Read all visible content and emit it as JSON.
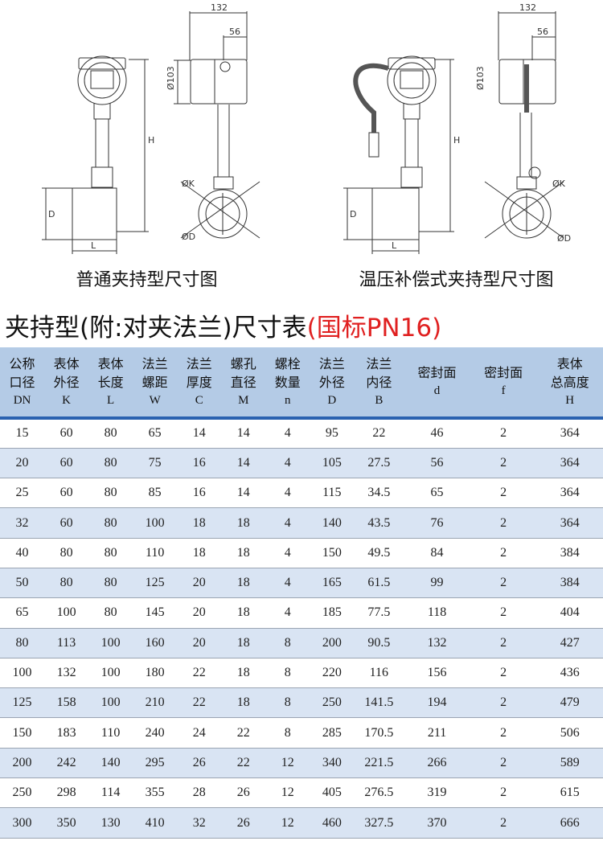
{
  "drawings": [
    {
      "caption": "普通夹持型尺寸图",
      "dims": {
        "width": "132",
        "offset": "56",
        "diameter": "Ø103",
        "height": "H",
        "pipe_d": "D",
        "length": "L",
        "k": "ØK",
        "flange_d": "ØD"
      }
    },
    {
      "caption": "温压补偿式夹持型尺寸图",
      "dims": {
        "width": "132",
        "offset": "56",
        "diameter": "Ø103",
        "height": "H",
        "pipe_d": "D",
        "length": "L",
        "k": "ØK",
        "flange_d": "ØD"
      }
    }
  ],
  "table_title": {
    "main": "夹持型(附:对夹法兰)尺寸表",
    "standard": "(国标PN16)"
  },
  "table": {
    "headers": [
      {
        "line1": "公称",
        "line2": "口径",
        "symbol": "DN"
      },
      {
        "line1": "表体",
        "line2": "外径",
        "symbol": "K"
      },
      {
        "line1": "表体",
        "line2": "长度",
        "symbol": "L"
      },
      {
        "line1": "法兰",
        "line2": "螺距",
        "symbol": "W"
      },
      {
        "line1": "法兰",
        "line2": "厚度",
        "symbol": "C"
      },
      {
        "line1": "螺孔",
        "line2": "直径",
        "symbol": "M"
      },
      {
        "line1": "螺栓",
        "line2": "数量",
        "symbol": "n"
      },
      {
        "line1": "法兰",
        "line2": "外径",
        "symbol": "D"
      },
      {
        "line1": "法兰",
        "line2": "内径",
        "symbol": "B"
      },
      {
        "line1": "",
        "line2": "密封面",
        "symbol": "d"
      },
      {
        "line1": "",
        "line2": "密封面",
        "symbol": "f"
      },
      {
        "line1": "表体",
        "line2": "总高度",
        "symbol": "H"
      }
    ],
    "rows": [
      [
        "15",
        "60",
        "80",
        "65",
        "14",
        "14",
        "4",
        "95",
        "22",
        "46",
        "2",
        "364"
      ],
      [
        "20",
        "60",
        "80",
        "75",
        "16",
        "14",
        "4",
        "105",
        "27.5",
        "56",
        "2",
        "364"
      ],
      [
        "25",
        "60",
        "80",
        "85",
        "16",
        "14",
        "4",
        "115",
        "34.5",
        "65",
        "2",
        "364"
      ],
      [
        "32",
        "60",
        "80",
        "100",
        "18",
        "18",
        "4",
        "140",
        "43.5",
        "76",
        "2",
        "364"
      ],
      [
        "40",
        "80",
        "80",
        "110",
        "18",
        "18",
        "4",
        "150",
        "49.5",
        "84",
        "2",
        "384"
      ],
      [
        "50",
        "80",
        "80",
        "125",
        "20",
        "18",
        "4",
        "165",
        "61.5",
        "99",
        "2",
        "384"
      ],
      [
        "65",
        "100",
        "80",
        "145",
        "20",
        "18",
        "4",
        "185",
        "77.5",
        "118",
        "2",
        "404"
      ],
      [
        "80",
        "113",
        "100",
        "160",
        "20",
        "18",
        "8",
        "200",
        "90.5",
        "132",
        "2",
        "427"
      ],
      [
        "100",
        "132",
        "100",
        "180",
        "22",
        "18",
        "8",
        "220",
        "116",
        "156",
        "2",
        "436"
      ],
      [
        "125",
        "158",
        "100",
        "210",
        "22",
        "18",
        "8",
        "250",
        "141.5",
        "194",
        "2",
        "479"
      ],
      [
        "150",
        "183",
        "110",
        "240",
        "24",
        "22",
        "8",
        "285",
        "170.5",
        "211",
        "2",
        "506"
      ],
      [
        "200",
        "242",
        "140",
        "295",
        "26",
        "22",
        "12",
        "340",
        "221.5",
        "266",
        "2",
        "589"
      ],
      [
        "250",
        "298",
        "114",
        "355",
        "28",
        "26",
        "12",
        "405",
        "276.5",
        "319",
        "2",
        "615"
      ],
      [
        "300",
        "350",
        "130",
        "410",
        "32",
        "26",
        "12",
        "460",
        "327.5",
        "370",
        "2",
        "666"
      ]
    ]
  },
  "colors": {
    "header_bg": "#b4cbe6",
    "header_rule": "#2b62b0",
    "alt_row": "#d9e4f3",
    "accent_red": "#e02020"
  }
}
